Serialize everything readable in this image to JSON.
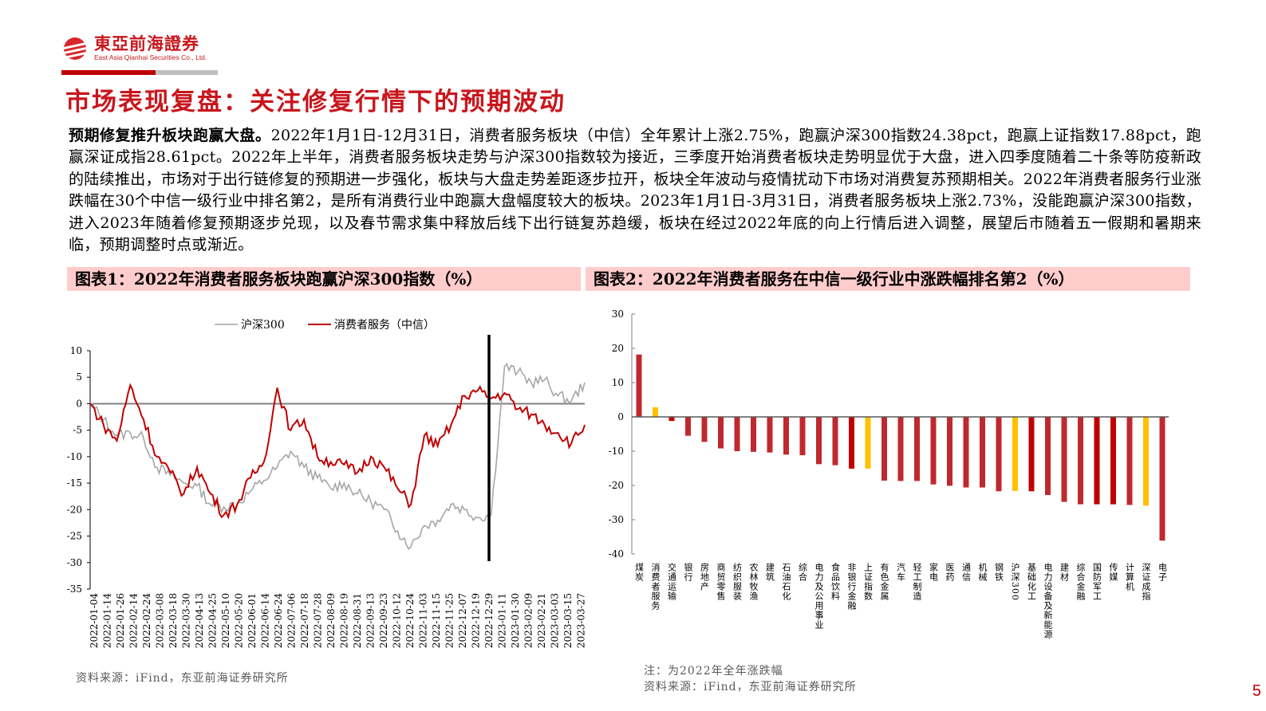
{
  "header": {
    "logo_cn": "東亞前海證券",
    "logo_en": "East Asia Qianhai Securities Co., Ltd.",
    "brand_color": "#c8161d"
  },
  "page_title": "市场表现复盘：关注修复行情下的预期波动",
  "paragraph": {
    "lead": "预期修复推升板块跑赢大盘。",
    "body": "2022年1月1日-12月31日，消费者服务板块（中信）全年累计上涨2.75%，跑赢沪深300指数24.38pct，跑赢上证指数17.88pct，跑赢深证成指28.61pct。2022年上半年，消费者服务板块走势与沪深300指数较为接近，三季度开始消费者板块走势明显优于大盘，进入四季度随着二十条等防疫新政的陆续推出，市场对于出行链修复的预期进一步强化，板块与大盘走势差距逐步拉开，板块全年波动与疫情扰动下市场对消费复苏预期相关。2022年消费者服务行业涨跌幅在30个中信一级行业中排名第2，是所有消费行业中跑赢大盘幅度较大的板块。2023年1月1日-3月31日，消费者服务板块上涨2.73%，没能跑赢沪深300指数，进入2023年随着修复预期逐步兑现，以及春节需求集中释放后线下出行链复苏趋缓，板块在经过2022年底的向上行情后进入调整，展望后市随着五一假期和暑期来临，预期调整时点或渐近。"
  },
  "figure1": {
    "title": "图表1：2022年消费者服务板块跑赢沪深300指数（%）",
    "source": "资料来源：iFind，东亚前海证券研究所"
  },
  "figure2": {
    "title": "图表2：2022年消费者服务在中信一级行业中涨跌幅排名第2（%）",
    "note": "注：为2022年全年涨跌幅",
    "source": "资料来源：iFind，东亚前海证券研究所"
  },
  "page_number": "5",
  "chart_data": [
    {
      "type": "line",
      "title": "2022年消费者服务板块跑赢沪深300指数（%）",
      "xlabel": "",
      "ylabel": "",
      "ylim": [
        -35,
        10
      ],
      "yticks": [
        10,
        5,
        0,
        -5,
        -10,
        -15,
        -20,
        -25,
        -30,
        -35
      ],
      "legend": [
        "沪深300",
        "消费者服务（中信）"
      ],
      "legend_position": "top",
      "grid": false,
      "x": [
        "2022-01-04",
        "2022-01-14",
        "2022-01-26",
        "2022-02-14",
        "2022-02-24",
        "2022-03-08",
        "2022-03-18",
        "2022-03-30",
        "2022-04-13",
        "2022-04-25",
        "2022-05-10",
        "2022-05-20",
        "2022-06-01",
        "2022-06-14",
        "2022-06-24",
        "2022-07-06",
        "2022-07-18",
        "2022-07-28",
        "2022-08-09",
        "2022-08-19",
        "2022-08-31",
        "2022-09-13",
        "2022-09-23",
        "2022-10-12",
        "2022-10-24",
        "2022-11-03",
        "2022-11-15",
        "2022-11-25",
        "2022-12-07",
        "2022-12-19",
        "2022-12-29",
        "2023-01-11",
        "2023-01-30",
        "2023-02-09",
        "2023-02-21",
        "2023-03-03",
        "2023-03-15",
        "2023-03-27"
      ],
      "series": [
        {
          "name": "沪深300",
          "color": "#a6a6a6",
          "values": [
            0,
            -3,
            -6,
            -5.5,
            -6.5,
            -12,
            -13.5,
            -15,
            -15.5,
            -19,
            -19.5,
            -19,
            -16.5,
            -14.5,
            -12,
            -9,
            -12,
            -14,
            -16,
            -15,
            -17,
            -18.5,
            -20,
            -24,
            -27,
            -23,
            -22,
            -19,
            -20,
            -21.5,
            -21,
            7,
            6,
            4,
            4.5,
            1.5,
            0.5,
            4
          ]
        },
        {
          "name": "消费者服务（中信）",
          "color": "#c00000",
          "values": [
            0,
            -4,
            -7,
            3.5,
            -3,
            -10,
            -13,
            -17,
            -12,
            -17,
            -21,
            -19,
            -14,
            -11,
            3,
            -5,
            -3,
            -10,
            -11,
            -11.5,
            -13,
            -10,
            -12,
            -16,
            -19,
            -6,
            -8,
            -4,
            1.5,
            2.5,
            1,
            2,
            -1,
            -2,
            -4,
            -5.5,
            -7.5,
            -4
          ]
        }
      ],
      "annotations": [
        "vertical divider line at 2022-12-31"
      ]
    },
    {
      "type": "bar",
      "title": "2022年消费者服务在中信一级行业中涨跌幅排名第2（%）",
      "xlabel": "",
      "ylabel": "",
      "ylim": [
        -40,
        30
      ],
      "yticks": [
        30,
        20,
        10,
        0,
        -10,
        -20,
        -30,
        -40
      ],
      "grid": false,
      "categories": [
        "煤炭",
        "消费者服务",
        "交通运输",
        "银行",
        "房地产",
        "商贸零售",
        "纺织服装",
        "农林牧渔",
        "建筑",
        "石油石化",
        "综合",
        "电力及公用事业",
        "食品饮料",
        "非银行金融",
        "上证指数",
        "有色金属",
        "汽车",
        "轻工制造",
        "家电",
        "医药",
        "通信",
        "机械",
        "钢铁",
        "沪深300",
        "基础化工",
        "电力设备及新能源",
        "建材",
        "综合金融",
        "国防军工",
        "传媒",
        "计算机",
        "深证成指",
        "电子"
      ],
      "values": [
        18.2,
        2.8,
        -1.2,
        -5.5,
        -7.3,
        -9.2,
        -10,
        -10.2,
        -10.4,
        -11,
        -11.2,
        -13.8,
        -14.1,
        -15.1,
        -15.1,
        -18.6,
        -18.7,
        -18.7,
        -19.7,
        -20.1,
        -20.6,
        -20.6,
        -21.7,
        -21.6,
        -21.7,
        -22.8,
        -24.8,
        -25.5,
        -25.5,
        -25.5,
        -25.7,
        -25.9,
        -36.1
      ],
      "colors": {
        "industry": "#c0282f",
        "index": "#ffc000",
        "highlight": "#c00000"
      }
    }
  ]
}
